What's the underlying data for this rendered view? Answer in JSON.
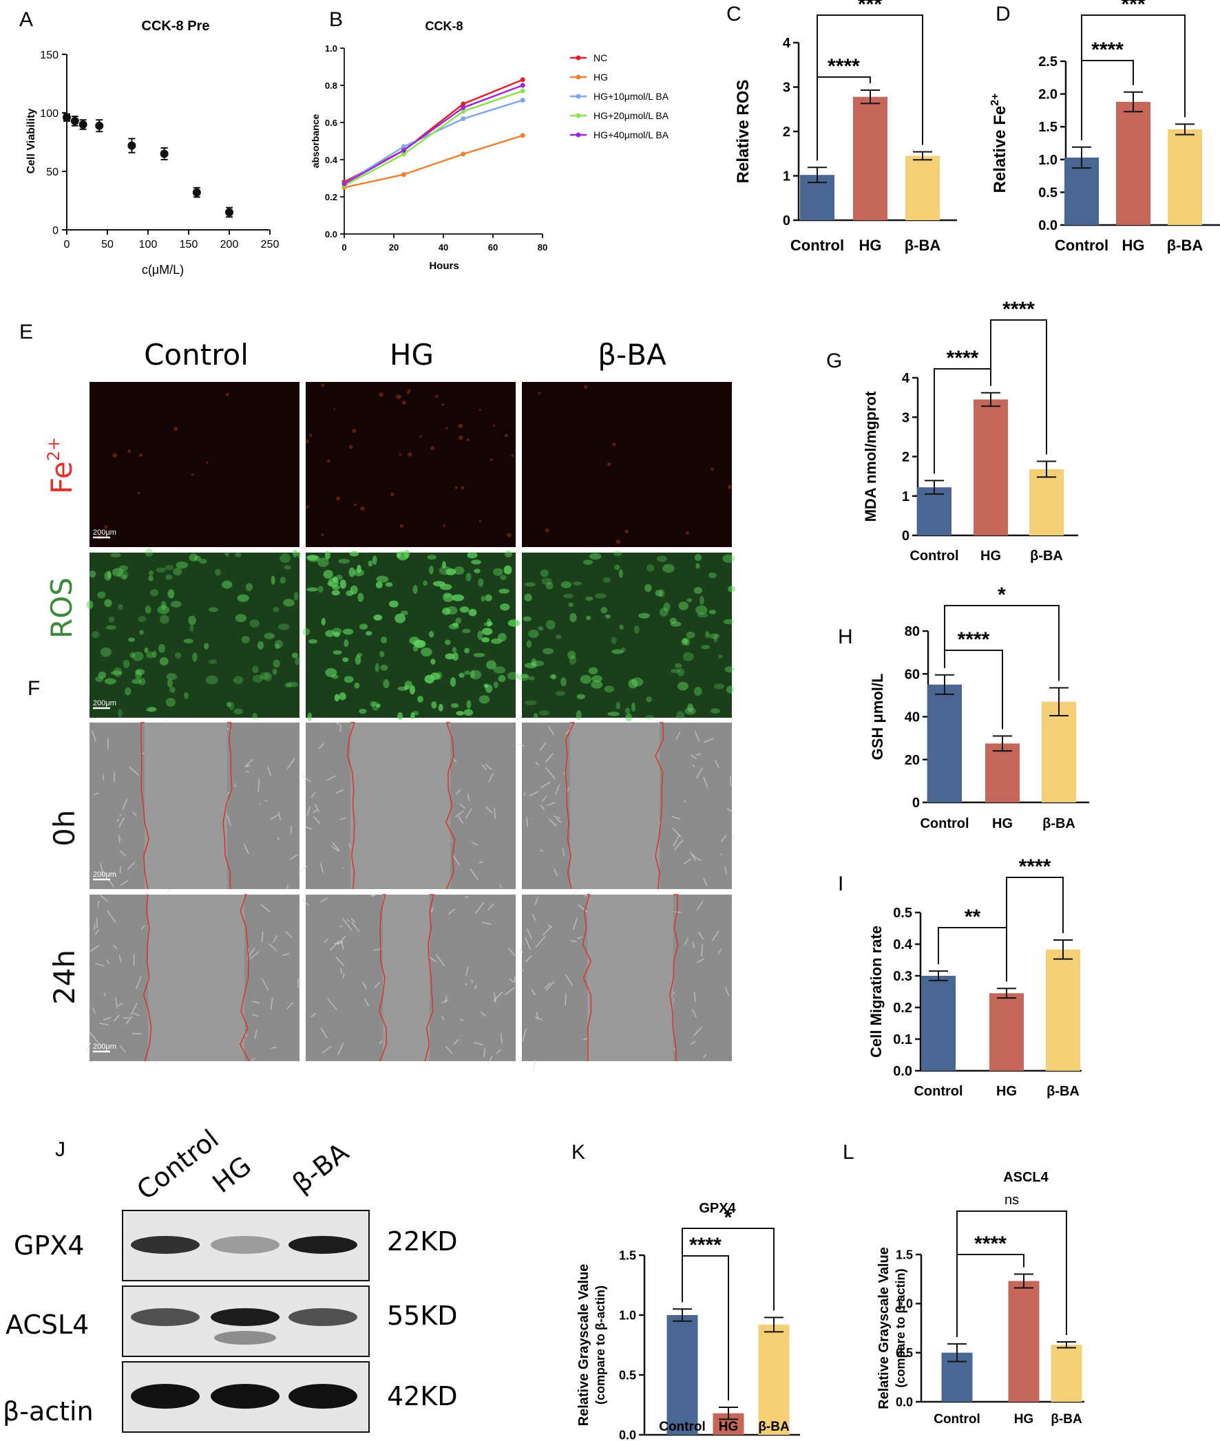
{
  "colors": {
    "control": "#4a6794",
    "hg": "#c5665a",
    "bba": "#f3cf76",
    "nc": "#e0212a",
    "hg_line": "#f08030",
    "ba10": "#7ea6f2",
    "ba20": "#8be34c",
    "ba40": "#9b2ad6",
    "fe_panel": "#150404",
    "ros_panel": "#1a3f1a",
    "scratch_bg": "#8c8c8c",
    "wound": "#e0302e"
  },
  "panels": {
    "A": "A",
    "B": "B",
    "C": "C",
    "D": "D",
    "E": "E",
    "F": "F",
    "G": "G",
    "H": "H",
    "I": "I",
    "J": "J",
    "K": "K",
    "L": "L"
  },
  "panelE": {
    "columns": [
      "Control",
      "HG",
      "β-BA"
    ],
    "row_fe": "Fe",
    "row_fe_sup": "2+",
    "row_ros": "ROS",
    "row_0h": "0h",
    "row_24h": "24h",
    "scale": "200μm"
  },
  "panelJ": {
    "lanes": [
      "Control",
      "HG",
      "β-BA"
    ],
    "rows": [
      {
        "name": "GPX4",
        "size": "22KD",
        "intensity": [
          0.85,
          0.35,
          0.95
        ]
      },
      {
        "name": "ACSL4",
        "size": "55KD",
        "intensity": [
          0.7,
          0.95,
          0.7
        ]
      },
      {
        "name": "β-actin",
        "size": "42KD",
        "intensity": [
          1,
          1,
          1
        ]
      }
    ]
  },
  "chart_data": [
    {
      "id": "A",
      "type": "scatter",
      "title": "CCK-8 Pre",
      "xlabel": "c(μM/L)",
      "ylabel": "Cell Viability",
      "x": [
        0,
        5,
        10,
        20,
        40,
        80,
        120,
        160,
        200
      ],
      "y": [
        97,
        94,
        91,
        90,
        72,
        65,
        33,
        16,
        15
      ],
      "x_fix": [
        0,
        10,
        20,
        40,
        80,
        120,
        160,
        200
      ],
      "y_fix": [
        96,
        93,
        90,
        89,
        72,
        65,
        32,
        15
      ],
      "err": [
        3,
        4,
        4,
        5,
        6,
        5,
        4,
        4
      ],
      "xlim": [
        0,
        250
      ],
      "xticks": [
        0,
        50,
        100,
        150,
        200,
        250
      ],
      "ylim": [
        0,
        150
      ],
      "yticks": [
        0,
        50,
        100,
        150
      ]
    },
    {
      "id": "B",
      "type": "line",
      "title": "CCK-8",
      "xlabel": "Hours",
      "ylabel": "absorbance",
      "x": [
        0,
        24,
        48,
        72
      ],
      "xlim": [
        0,
        80
      ],
      "xticks": [
        0,
        20,
        40,
        60,
        80
      ],
      "ylim": [
        0,
        1.0
      ],
      "yticks": [
        "0.0",
        "0.2",
        "0.4",
        "0.6",
        "0.8",
        "1.0"
      ],
      "series": [
        {
          "name": "NC",
          "values": [
            0.28,
            0.45,
            0.7,
            0.83
          ]
        },
        {
          "name": "HG",
          "values": [
            0.25,
            0.32,
            0.43,
            0.53
          ]
        },
        {
          "name": "HG+10μmol/L BA",
          "values": [
            0.27,
            0.47,
            0.62,
            0.72
          ]
        },
        {
          "name": "HG+20μmol/L BA",
          "values": [
            0.26,
            0.43,
            0.66,
            0.77
          ]
        },
        {
          "name": "HG+40μmol/L BA",
          "values": [
            0.27,
            0.45,
            0.68,
            0.8
          ]
        }
      ]
    },
    {
      "id": "C",
      "type": "bar",
      "categories": [
        "Control",
        "HG",
        "β-BA"
      ],
      "values": [
        1.02,
        2.78,
        1.45
      ],
      "err": [
        0.17,
        0.15,
        0.09
      ],
      "ylabel": "Relative ROS",
      "ylim": [
        0,
        4
      ],
      "yticks": [
        "0",
        "1",
        "2",
        "3",
        "4"
      ],
      "sig": [
        {
          "a": 0,
          "b": 1,
          "label": "****"
        },
        {
          "a": 0,
          "b": 2,
          "label": "***"
        }
      ]
    },
    {
      "id": "D",
      "type": "bar",
      "categories": [
        "Control",
        "HG",
        "β-BA"
      ],
      "values": [
        1.03,
        1.88,
        1.46
      ],
      "err": [
        0.16,
        0.15,
        0.08
      ],
      "ylabel": "Relative Fe",
      "ylabel_sup": "2+",
      "ylim": [
        0,
        2.5
      ],
      "yticks": [
        "0.0",
        "0.5",
        "1.0",
        "1.5",
        "2.0",
        "2.5"
      ],
      "sig": [
        {
          "a": 0,
          "b": 1,
          "label": "****"
        },
        {
          "a": 0,
          "b": 2,
          "label": "***"
        }
      ]
    },
    {
      "id": "G",
      "type": "bar",
      "categories": [
        "Control",
        "HG",
        "β-BA"
      ],
      "values": [
        1.22,
        3.45,
        1.68
      ],
      "err": [
        0.17,
        0.17,
        0.2
      ],
      "ylabel": "MDA nmol/mgprot",
      "ylim": [
        0,
        4
      ],
      "yticks": [
        "0",
        "1",
        "2",
        "3",
        "4"
      ],
      "sig": [
        {
          "a": 0,
          "b": 1,
          "label": "****"
        },
        {
          "a": 1,
          "b": 2,
          "label": "****"
        }
      ]
    },
    {
      "id": "H",
      "type": "bar",
      "categories": [
        "Control",
        "HG",
        "β-BA"
      ],
      "values": [
        55,
        27.5,
        47
      ],
      "err": [
        4.5,
        3.5,
        6.5
      ],
      "ylabel": "GSH μmol/L",
      "ylim": [
        0,
        80
      ],
      "yticks": [
        "0",
        "20",
        "40",
        "60",
        "80"
      ],
      "sig": [
        {
          "a": 0,
          "b": 1,
          "label": "****"
        },
        {
          "a": 0,
          "b": 2,
          "label": "*"
        }
      ]
    },
    {
      "id": "I",
      "type": "bar",
      "categories": [
        "Control",
        "HG",
        "β-BA"
      ],
      "values": [
        0.3,
        0.245,
        0.383
      ],
      "err": [
        0.015,
        0.015,
        0.03
      ],
      "ylabel": "Cell Migration rate",
      "ylim": [
        0,
        0.5
      ],
      "yticks": [
        "0.0",
        "0.1",
        "0.2",
        "0.3",
        "0.4",
        "0.5"
      ],
      "sig": [
        {
          "a": 0,
          "b": 1,
          "label": "**"
        },
        {
          "a": 1,
          "b": 2,
          "label": "****"
        }
      ]
    },
    {
      "id": "K",
      "type": "bar",
      "title": "GPX4",
      "categories": [
        "Control",
        "HG",
        "β-BA"
      ],
      "values": [
        1.0,
        0.18,
        0.92
      ],
      "err": [
        0.05,
        0.05,
        0.06
      ],
      "ylabel": "Relative Grayscale Value",
      "ylabel2": "(compare to β-actin)",
      "ylim": [
        0,
        1.5
      ],
      "yticks": [
        "0.0",
        "0.5",
        "1.0",
        "1.5"
      ],
      "sig": [
        {
          "a": 0,
          "b": 1,
          "label": "****"
        },
        {
          "a": 0,
          "b": 2,
          "label": "*"
        }
      ]
    },
    {
      "id": "L",
      "type": "bar",
      "title": "ASCL4",
      "categories": [
        "Control",
        "HG",
        "β-BA"
      ],
      "values": [
        0.5,
        1.23,
        0.58
      ],
      "err": [
        0.09,
        0.07,
        0.03
      ],
      "ylabel": "Relative Grayscale Value",
      "ylabel2": "(compare to β-actin)",
      "ylim": [
        0,
        1.5
      ],
      "yticks": [
        "0.0",
        "0.5",
        "1.0",
        "1.5"
      ],
      "sig": [
        {
          "a": 0,
          "b": 1,
          "label": "****"
        },
        {
          "a": 0,
          "b": 2,
          "label": "ns"
        }
      ]
    }
  ]
}
